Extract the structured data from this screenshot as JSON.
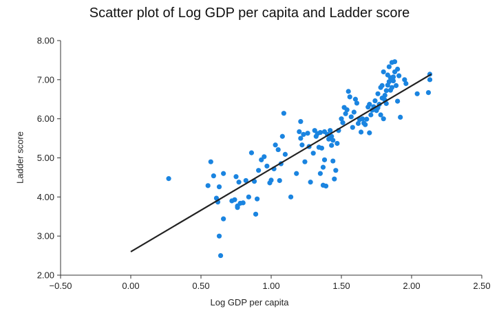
{
  "chart_data": {
    "type": "scatter",
    "title": "Scatter plot of Log GDP per capita and Ladder score",
    "xlabel": "Log GDP per capita",
    "ylabel": "Ladder score",
    "xlim": [
      -0.5,
      2.5
    ],
    "ylim": [
      2.0,
      8.0
    ],
    "xticks": [
      -0.5,
      0.0,
      0.5,
      1.0,
      1.5,
      2.0,
      2.5
    ],
    "xtick_labels": [
      "−0.50",
      "0.00",
      "0.50",
      "1.00",
      "1.50",
      "2.00",
      "2.50"
    ],
    "yticks": [
      2.0,
      3.0,
      4.0,
      5.0,
      6.0,
      7.0,
      8.0
    ],
    "ytick_labels": [
      "2.00",
      "3.00",
      "4.00",
      "5.00",
      "6.00",
      "7.00",
      "8.00"
    ],
    "grid": false,
    "legend": "none",
    "point_color": "#1a84e0",
    "line_color": "#222222",
    "trendline": {
      "x": [
        0.0,
        2.14
      ],
      "y": [
        2.6,
        7.14
      ]
    },
    "points": [
      [
        0.27,
        4.47
      ],
      [
        0.55,
        4.29
      ],
      [
        0.57,
        4.9
      ],
      [
        0.59,
        4.54
      ],
      [
        0.61,
        3.97
      ],
      [
        0.62,
        3.87
      ],
      [
        0.63,
        4.26
      ],
      [
        0.63,
        3.0
      ],
      [
        0.64,
        2.5
      ],
      [
        0.66,
        3.44
      ],
      [
        0.66,
        4.6
      ],
      [
        0.72,
        3.9
      ],
      [
        0.74,
        3.93
      ],
      [
        0.75,
        4.52
      ],
      [
        0.76,
        3.77
      ],
      [
        0.76,
        3.73
      ],
      [
        0.77,
        4.38
      ],
      [
        0.78,
        3.84
      ],
      [
        0.8,
        3.85
      ],
      [
        0.82,
        4.42
      ],
      [
        0.84,
        4.0
      ],
      [
        0.86,
        5.13
      ],
      [
        0.88,
        4.4
      ],
      [
        0.89,
        3.56
      ],
      [
        0.9,
        3.95
      ],
      [
        0.91,
        4.68
      ],
      [
        0.93,
        4.95
      ],
      [
        0.95,
        5.03
      ],
      [
        0.97,
        4.79
      ],
      [
        0.99,
        4.36
      ],
      [
        1.0,
        4.43
      ],
      [
        1.02,
        4.72
      ],
      [
        1.03,
        5.33
      ],
      [
        1.05,
        5.21
      ],
      [
        1.06,
        4.42
      ],
      [
        1.07,
        4.85
      ],
      [
        1.08,
        5.55
      ],
      [
        1.09,
        6.14
      ],
      [
        1.1,
        5.09
      ],
      [
        1.14,
        4.0
      ],
      [
        1.18,
        4.6
      ],
      [
        1.2,
        5.67
      ],
      [
        1.21,
        5.5
      ],
      [
        1.22,
        5.33
      ],
      [
        1.21,
        5.93
      ],
      [
        1.23,
        5.6
      ],
      [
        1.24,
        4.9
      ],
      [
        1.26,
        5.63
      ],
      [
        1.27,
        5.29
      ],
      [
        1.28,
        4.38
      ],
      [
        1.3,
        5.12
      ],
      [
        1.31,
        5.7
      ],
      [
        1.32,
        5.55
      ],
      [
        1.33,
        5.62
      ],
      [
        1.34,
        5.27
      ],
      [
        1.35,
        5.65
      ],
      [
        1.35,
        4.6
      ],
      [
        1.36,
        5.25
      ],
      [
        1.37,
        4.76
      ],
      [
        1.37,
        4.3
      ],
      [
        1.38,
        5.67
      ],
      [
        1.38,
        4.95
      ],
      [
        1.39,
        4.28
      ],
      [
        1.4,
        5.6
      ],
      [
        1.41,
        5.48
      ],
      [
        1.42,
        5.7
      ],
      [
        1.43,
        5.55
      ],
      [
        1.43,
        5.32
      ],
      [
        1.44,
        5.45
      ],
      [
        1.44,
        4.92
      ],
      [
        1.45,
        4.46
      ],
      [
        1.46,
        4.68
      ],
      [
        1.47,
        5.37
      ],
      [
        1.48,
        5.7
      ],
      [
        1.5,
        6.0
      ],
      [
        1.51,
        5.9
      ],
      [
        1.52,
        6.29
      ],
      [
        1.53,
        6.13
      ],
      [
        1.54,
        6.23
      ],
      [
        1.55,
        6.7
      ],
      [
        1.56,
        6.56
      ],
      [
        1.57,
        6.05
      ],
      [
        1.58,
        5.78
      ],
      [
        1.59,
        6.17
      ],
      [
        1.6,
        6.5
      ],
      [
        1.61,
        6.4
      ],
      [
        1.62,
        5.88
      ],
      [
        1.63,
        5.98
      ],
      [
        1.64,
        5.66
      ],
      [
        1.65,
        6.0
      ],
      [
        1.66,
        5.89
      ],
      [
        1.67,
        5.85
      ],
      [
        1.68,
        5.99
      ],
      [
        1.69,
        6.3
      ],
      [
        1.7,
        5.64
      ],
      [
        1.7,
        6.37
      ],
      [
        1.71,
        6.1
      ],
      [
        1.72,
        6.22
      ],
      [
        1.73,
        6.31
      ],
      [
        1.74,
        6.46
      ],
      [
        1.75,
        6.21
      ],
      [
        1.76,
        6.64
      ],
      [
        1.76,
        6.28
      ],
      [
        1.77,
        6.37
      ],
      [
        1.78,
        6.8
      ],
      [
        1.78,
        6.1
      ],
      [
        1.79,
        6.53
      ],
      [
        1.79,
        6.85
      ],
      [
        1.8,
        7.2
      ],
      [
        1.8,
        6.0
      ],
      [
        1.81,
        6.48
      ],
      [
        1.81,
        6.6
      ],
      [
        1.82,
        6.72
      ],
      [
        1.82,
        6.39
      ],
      [
        1.83,
        6.86
      ],
      [
        1.83,
        7.12
      ],
      [
        1.84,
        6.95
      ],
      [
        1.84,
        7.33
      ],
      [
        1.85,
        6.73
      ],
      [
        1.85,
        7.05
      ],
      [
        1.86,
        6.8
      ],
      [
        1.86,
        7.44
      ],
      [
        1.87,
        6.97
      ],
      [
        1.87,
        7.07
      ],
      [
        1.88,
        7.2
      ],
      [
        1.88,
        7.46
      ],
      [
        1.89,
        6.85
      ],
      [
        1.9,
        6.45
      ],
      [
        1.9,
        7.27
      ],
      [
        1.91,
        7.1
      ],
      [
        1.92,
        6.04
      ],
      [
        1.95,
        7.0
      ],
      [
        1.96,
        6.9
      ],
      [
        2.04,
        6.64
      ],
      [
        2.12,
        6.67
      ],
      [
        2.13,
        7.0
      ],
      [
        2.13,
        7.14
      ]
    ]
  }
}
